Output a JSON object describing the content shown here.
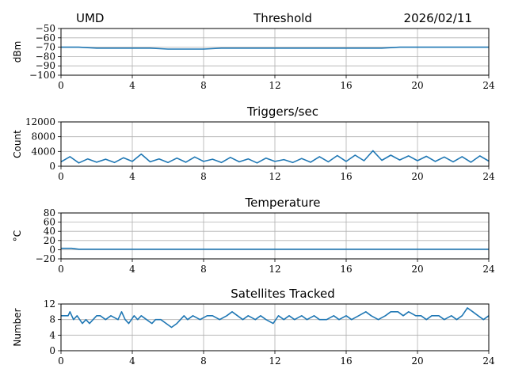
{
  "header": {
    "left": "UMD",
    "center": "Threshold",
    "right": "2026/02/11"
  },
  "colors": {
    "line": "#1f77b4",
    "grid": "#b0b0b0",
    "axes": "#000000"
  },
  "chart_data": [
    {
      "type": "line",
      "title": "Threshold",
      "xlabel": "",
      "ylabel": "dBm",
      "xlim": [
        0,
        24
      ],
      "ylim": [
        -100,
        -50
      ],
      "xticks": [
        0,
        4,
        8,
        12,
        16,
        20,
        24
      ],
      "xtick_labels": [
        "0",
        "4",
        "8",
        "12",
        "16",
        "20",
        "24"
      ],
      "yticks": [
        -50,
        -60,
        -70,
        -80,
        -90,
        -100
      ],
      "ytick_labels": [
        "−50",
        "−60",
        "−70",
        "−80",
        "−90",
        "−100"
      ],
      "grid": true,
      "series": [
        {
          "x": [
            0,
            1,
            2,
            3,
            4,
            5,
            6,
            7,
            8,
            9,
            10,
            11,
            12,
            13,
            14,
            15,
            16,
            17,
            18,
            19,
            20,
            21,
            22,
            23,
            24
          ],
          "values": [
            -70,
            -70,
            -71,
            -71,
            -71,
            -71,
            -72,
            -72,
            -72,
            -71,
            -71,
            -71,
            -71,
            -71,
            -71,
            -71,
            -71,
            -71,
            -71,
            -70,
            -70,
            -70,
            -70,
            -70,
            -70
          ]
        }
      ]
    },
    {
      "type": "line",
      "title": "Triggers/sec",
      "xlabel": "",
      "ylabel": "Count",
      "xlim": [
        0,
        24
      ],
      "ylim": [
        0,
        12000
      ],
      "xticks": [
        0,
        4,
        8,
        12,
        16,
        20,
        24
      ],
      "xtick_labels": [
        "0",
        "4",
        "8",
        "12",
        "16",
        "20",
        "24"
      ],
      "yticks": [
        0,
        4000,
        8000,
        12000
      ],
      "ytick_labels": [
        "0",
        "4000",
        "8000",
        "12000"
      ],
      "grid": true,
      "series": [
        {
          "x": [
            0,
            0.5,
            1,
            1.5,
            2,
            2.5,
            3,
            3.5,
            4,
            4.5,
            5,
            5.5,
            6,
            6.5,
            7,
            7.5,
            8,
            8.5,
            9,
            9.5,
            10,
            10.5,
            11,
            11.5,
            12,
            12.5,
            13,
            13.5,
            14,
            14.5,
            15,
            15.5,
            16,
            16.5,
            17,
            17.5,
            18,
            18.5,
            19,
            19.5,
            20,
            20.5,
            21,
            21.5,
            22,
            22.5,
            23,
            23.5,
            24
          ],
          "values": [
            1200,
            2600,
            900,
            2000,
            1100,
            1900,
            1000,
            2300,
            1300,
            3300,
            1200,
            2000,
            1000,
            2200,
            1100,
            2500,
            1300,
            1900,
            1000,
            2400,
            1200,
            2000,
            900,
            2200,
            1300,
            1800,
            1000,
            2100,
            1100,
            2600,
            1200,
            2900,
            1300,
            3000,
            1500,
            4200,
            1600,
            3000,
            1700,
            2800,
            1500,
            2700,
            1300,
            2500,
            1200,
            2600,
            1100,
            2800,
            1400
          ]
        }
      ]
    },
    {
      "type": "line",
      "title": "Temperature",
      "xlabel": "",
      "ylabel": "°C",
      "xlim": [
        0,
        24
      ],
      "ylim": [
        -20,
        80
      ],
      "xticks": [
        0,
        4,
        8,
        12,
        16,
        20,
        24
      ],
      "xtick_labels": [
        "0",
        "4",
        "8",
        "12",
        "16",
        "20",
        "24"
      ],
      "yticks": [
        -20,
        0,
        20,
        40,
        60,
        80
      ],
      "ytick_labels": [
        "−20",
        "0",
        "20",
        "40",
        "60",
        "80"
      ],
      "grid": true,
      "series": [
        {
          "x": [
            0,
            0.6,
            1,
            4,
            8,
            12,
            16,
            20,
            24
          ],
          "values": [
            3,
            3,
            1,
            1,
            1,
            1,
            1,
            1,
            1
          ]
        }
      ]
    },
    {
      "type": "line",
      "title": "Satellites Tracked",
      "xlabel": "",
      "ylabel": "Number",
      "xlim": [
        0,
        24
      ],
      "ylim": [
        0,
        12
      ],
      "xticks": [
        0,
        4,
        8,
        12,
        16,
        20,
        24
      ],
      "xtick_labels": [
        "0",
        "4",
        "8",
        "12",
        "16",
        "20",
        "24"
      ],
      "yticks": [
        0,
        4,
        8,
        12
      ],
      "ytick_labels": [
        "0",
        "4",
        "8",
        "12"
      ],
      "grid": true,
      "series": [
        {
          "x": [
            0,
            0.4,
            0.5,
            0.7,
            0.9,
            1.2,
            1.4,
            1.6,
            1.8,
            2.0,
            2.2,
            2.5,
            2.8,
            3.2,
            3.4,
            3.6,
            3.8,
            4.1,
            4.3,
            4.5,
            4.8,
            5.1,
            5.3,
            5.6,
            5.9,
            6.2,
            6.5,
            6.7,
            6.9,
            7.1,
            7.4,
            7.8,
            8.2,
            8.5,
            8.9,
            9.3,
            9.6,
            9.9,
            10.2,
            10.5,
            10.9,
            11.2,
            11.5,
            11.9,
            12.2,
            12.5,
            12.8,
            13.1,
            13.5,
            13.8,
            14.2,
            14.5,
            14.9,
            15.3,
            15.6,
            16.0,
            16.3,
            16.7,
            17.1,
            17.4,
            17.8,
            18.2,
            18.5,
            18.9,
            19.2,
            19.5,
            19.9,
            20.2,
            20.5,
            20.8,
            21.2,
            21.5,
            21.9,
            22.2,
            22.5,
            22.8,
            23.1,
            23.4,
            23.7,
            24
          ],
          "values": [
            9,
            9,
            10,
            8,
            9,
            7,
            8,
            7,
            8,
            9,
            9,
            8,
            9,
            8,
            10,
            8,
            7,
            9,
            8,
            9,
            8,
            7,
            8,
            8,
            7,
            6,
            7,
            8,
            9,
            8,
            9,
            8,
            9,
            9,
            8,
            9,
            10,
            9,
            8,
            9,
            8,
            9,
            8,
            7,
            9,
            8,
            9,
            8,
            9,
            8,
            9,
            8,
            8,
            9,
            8,
            9,
            8,
            9,
            10,
            9,
            8,
            9,
            10,
            10,
            9,
            10,
            9,
            9,
            8,
            9,
            9,
            8,
            9,
            8,
            9,
            11,
            10,
            9,
            8,
            9
          ]
        }
      ]
    }
  ]
}
